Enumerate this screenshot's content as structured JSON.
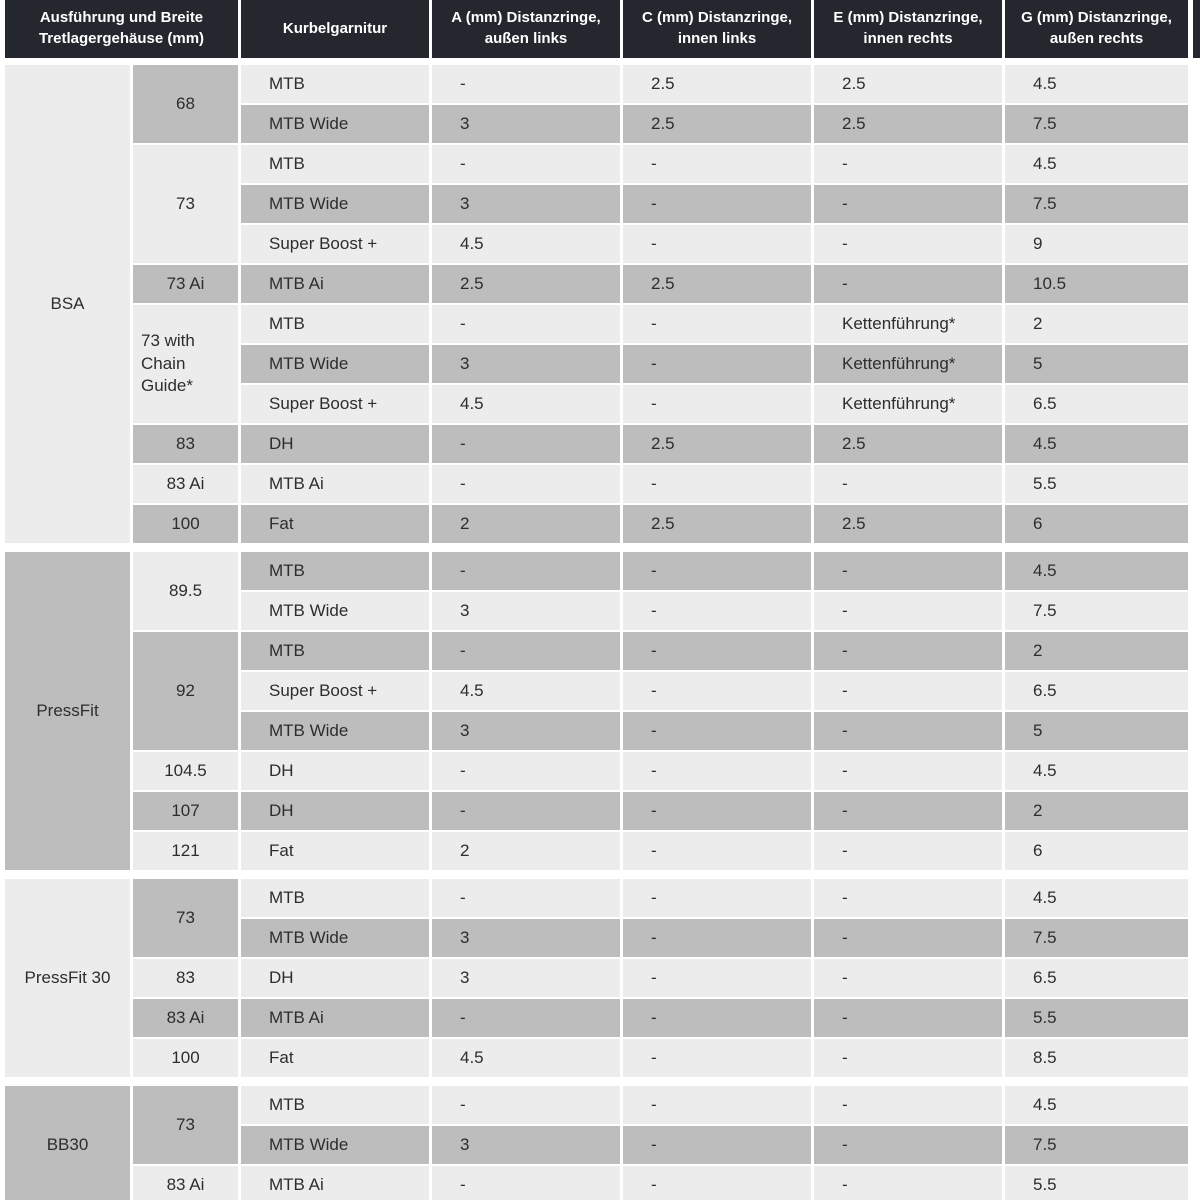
{
  "colors": {
    "header_bg": "#24272e",
    "header_text": "#ffffff",
    "row_light": "#ececec",
    "row_gray": "#bdbdbd",
    "body_text": "#2d2d30",
    "page_bg": "#ffffff"
  },
  "table": {
    "header": [
      "Ausführung und Breite Tretlagergehäuse (mm)",
      "Kurbelgarnitur",
      "A (mm) Distanzringe, außen links",
      "C (mm) Distanzringe, innen links",
      "E (mm) Distanzringe, innen rechts",
      "G (mm) Distanzringe, außen rechts"
    ],
    "sections": [
      {
        "label": "BSA",
        "shading": {
          "label": "light",
          "widths_start": "gray",
          "rows_start": "light"
        },
        "groups": [
          {
            "width": "68",
            "rows": [
              {
                "crank": "MTB",
                "a": "-",
                "c": "2.5",
                "e": "2.5",
                "g": "4.5"
              },
              {
                "crank": "MTB Wide",
                "a": "3",
                "c": "2.5",
                "e": "2.5",
                "g": "7.5"
              }
            ]
          },
          {
            "width": "73",
            "rows": [
              {
                "crank": "MTB",
                "a": "-",
                "c": "-",
                "e": "-",
                "g": "4.5"
              },
              {
                "crank": "MTB Wide",
                "a": "3",
                "c": "-",
                "e": "-",
                "g": "7.5"
              },
              {
                "crank": "Super Boost +",
                "a": "4.5",
                "c": "-",
                "e": "-",
                "g": "9"
              }
            ]
          },
          {
            "width": "73 Ai",
            "rows": [
              {
                "crank": "MTB Ai",
                "a": "2.5",
                "c": "2.5",
                "e": "-",
                "g": "10.5"
              }
            ]
          },
          {
            "width": "73 with Chain Guide*",
            "rows": [
              {
                "crank": "MTB",
                "a": "-",
                "c": "-",
                "e": "Kettenführung*",
                "g": "2"
              },
              {
                "crank": "MTB Wide",
                "a": "3",
                "c": "-",
                "e": "Kettenführung*",
                "g": "5"
              },
              {
                "crank": "Super Boost +",
                "a": "4.5",
                "c": "-",
                "e": "Kettenführung*",
                "g": "6.5"
              }
            ]
          },
          {
            "width": "83",
            "rows": [
              {
                "crank": "DH",
                "a": "-",
                "c": "2.5",
                "e": "2.5",
                "g": "4.5"
              }
            ]
          },
          {
            "width": "83 Ai",
            "rows": [
              {
                "crank": "MTB Ai",
                "a": "-",
                "c": "-",
                "e": "-",
                "g": "5.5"
              }
            ]
          },
          {
            "width": "100",
            "rows": [
              {
                "crank": "Fat",
                "a": "2",
                "c": "2.5",
                "e": "2.5",
                "g": "6"
              }
            ]
          }
        ]
      },
      {
        "label": "PressFit",
        "shading": {
          "label": "gray",
          "widths_start": "light",
          "rows_start": "gray"
        },
        "groups": [
          {
            "width": "89.5",
            "rows": [
              {
                "crank": "MTB",
                "a": "-",
                "c": "-",
                "e": "-",
                "g": "4.5"
              },
              {
                "crank": "MTB Wide",
                "a": "3",
                "c": "-",
                "e": "-",
                "g": "7.5"
              }
            ]
          },
          {
            "width": "92",
            "rows": [
              {
                "crank": "MTB",
                "a": "-",
                "c": "-",
                "e": "-",
                "g": "2"
              },
              {
                "crank": "Super Boost +",
                "a": "4.5",
                "c": "-",
                "e": "-",
                "g": "6.5"
              },
              {
                "crank": "MTB Wide",
                "a": "3",
                "c": "-",
                "e": "-",
                "g": "5"
              }
            ]
          },
          {
            "width": "104.5",
            "rows": [
              {
                "crank": "DH",
                "a": "-",
                "c": "-",
                "e": "-",
                "g": "4.5"
              }
            ]
          },
          {
            "width": "107",
            "rows": [
              {
                "crank": "DH",
                "a": "-",
                "c": "-",
                "e": "-",
                "g": "2"
              }
            ]
          },
          {
            "width": "121",
            "rows": [
              {
                "crank": "Fat",
                "a": "2",
                "c": "-",
                "e": "-",
                "g": "6"
              }
            ]
          }
        ]
      },
      {
        "label": "PressFit 30",
        "shading": {
          "label": "light",
          "widths_start": "gray",
          "rows_start": "light"
        },
        "groups": [
          {
            "width": "73",
            "rows": [
              {
                "crank": "MTB",
                "a": "-",
                "c": "-",
                "e": "-",
                "g": "4.5"
              },
              {
                "crank": "MTB Wide",
                "a": "3",
                "c": "-",
                "e": "-",
                "g": "7.5"
              }
            ]
          },
          {
            "width": "83",
            "rows": [
              {
                "crank": "DH",
                "a": "3",
                "c": "-",
                "e": "-",
                "g": "6.5"
              }
            ]
          },
          {
            "width": "83 Ai",
            "rows": [
              {
                "crank": "MTB Ai",
                "a": "-",
                "c": "-",
                "e": "-",
                "g": "5.5"
              }
            ]
          },
          {
            "width": "100",
            "rows": [
              {
                "crank": "Fat",
                "a": "4.5",
                "c": "-",
                "e": "-",
                "g": "8.5"
              }
            ]
          }
        ]
      },
      {
        "label": "BB30",
        "shading": {
          "label": "gray",
          "widths_start": "gray",
          "rows_start": "light"
        },
        "groups": [
          {
            "width": "73",
            "rows": [
              {
                "crank": "MTB",
                "a": "-",
                "c": "-",
                "e": "-",
                "g": "4.5"
              },
              {
                "crank": "MTB Wide",
                "a": "3",
                "c": "-",
                "e": "-",
                "g": "7.5"
              }
            ]
          },
          {
            "width": "83 Ai",
            "rows": [
              {
                "crank": "MTB Ai",
                "a": "-",
                "c": "-",
                "e": "-",
                "g": "5.5"
              }
            ]
          }
        ]
      }
    ]
  }
}
